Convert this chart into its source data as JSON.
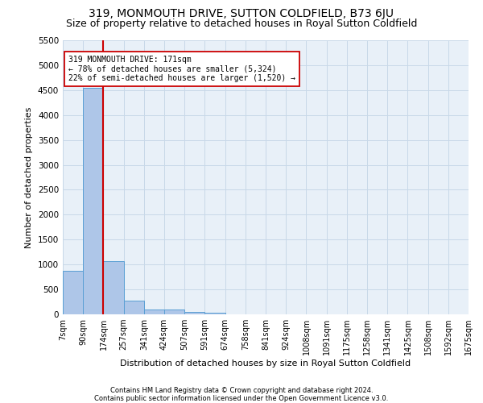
{
  "title": "319, MONMOUTH DRIVE, SUTTON COLDFIELD, B73 6JU",
  "subtitle": "Size of property relative to detached houses in Royal Sutton Coldfield",
  "xlabel": "Distribution of detached houses by size in Royal Sutton Coldfield",
  "ylabel": "Number of detached properties",
  "footer_line1": "Contains HM Land Registry data © Crown copyright and database right 2024.",
  "footer_line2": "Contains public sector information licensed under the Open Government Licence v3.0.",
  "bar_edges": [
    7,
    90,
    174,
    257,
    341,
    424,
    507,
    591,
    674,
    758,
    841,
    924,
    1008,
    1091,
    1175,
    1258,
    1341,
    1425,
    1508,
    1592,
    1675
  ],
  "bar_heights": [
    880,
    4550,
    1060,
    280,
    100,
    90,
    50,
    30,
    0,
    0,
    0,
    0,
    0,
    0,
    0,
    0,
    0,
    0,
    0,
    0
  ],
  "bar_color": "#aec6e8",
  "bar_edge_color": "#5a9fd4",
  "property_line_x": 174,
  "property_line_color": "#cc0000",
  "annotation_text": "319 MONMOUTH DRIVE: 171sqm\n← 78% of detached houses are smaller (5,324)\n22% of semi-detached houses are larger (1,520) →",
  "annotation_box_color": "#ffffff",
  "annotation_box_edgecolor": "#cc0000",
  "ylim": [
    0,
    5500
  ],
  "yticks": [
    0,
    500,
    1000,
    1500,
    2000,
    2500,
    3000,
    3500,
    4000,
    4500,
    5000,
    5500
  ],
  "grid_color": "#c8d8e8",
  "bg_color": "#e8f0f8",
  "tick_label_fontsize": 7,
  "title_fontsize": 10,
  "subtitle_fontsize": 9,
  "ylabel_fontsize": 8,
  "xlabel_fontsize": 8,
  "footer_fontsize": 6,
  "annotation_fontsize": 7
}
